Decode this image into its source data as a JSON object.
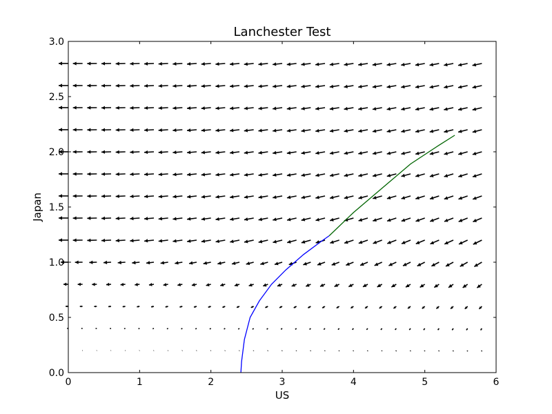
{
  "chart_data": {
    "type": "quiver",
    "title": "Lanchester Test",
    "xlabel": "US",
    "ylabel": "Japan",
    "xlim": [
      0,
      6
    ],
    "ylim": [
      0,
      3.0
    ],
    "x_ticks": [
      "0",
      "1",
      "2",
      "3",
      "4",
      "5",
      "6"
    ],
    "y_ticks": [
      "0.0",
      "0.5",
      "1.0",
      "1.5",
      "2.0",
      "2.5",
      "3.0"
    ],
    "grid": false,
    "quiver": {
      "x_start": 0,
      "x_step": 0.2,
      "x_count": 30,
      "y_start": 0,
      "y_step": 0.2,
      "y_count": 15,
      "field": "dx = -0.5*y^2, dy = -0.05*x*y",
      "color": "#000000"
    },
    "series": [
      {
        "color": "#0000ff",
        "x": [
          2.42,
          2.43,
          2.47,
          2.55,
          2.68,
          2.85,
          3.05,
          3.3,
          3.55,
          3.66
        ],
        "y": [
          0.0,
          0.1,
          0.3,
          0.5,
          0.65,
          0.8,
          0.93,
          1.07,
          1.19,
          1.24
        ]
      },
      {
        "color": "#006400",
        "x": [
          3.66,
          4.0,
          4.4,
          4.8,
          5.2,
          5.42
        ],
        "y": [
          1.24,
          1.45,
          1.67,
          1.89,
          2.06,
          2.15
        ]
      }
    ]
  }
}
